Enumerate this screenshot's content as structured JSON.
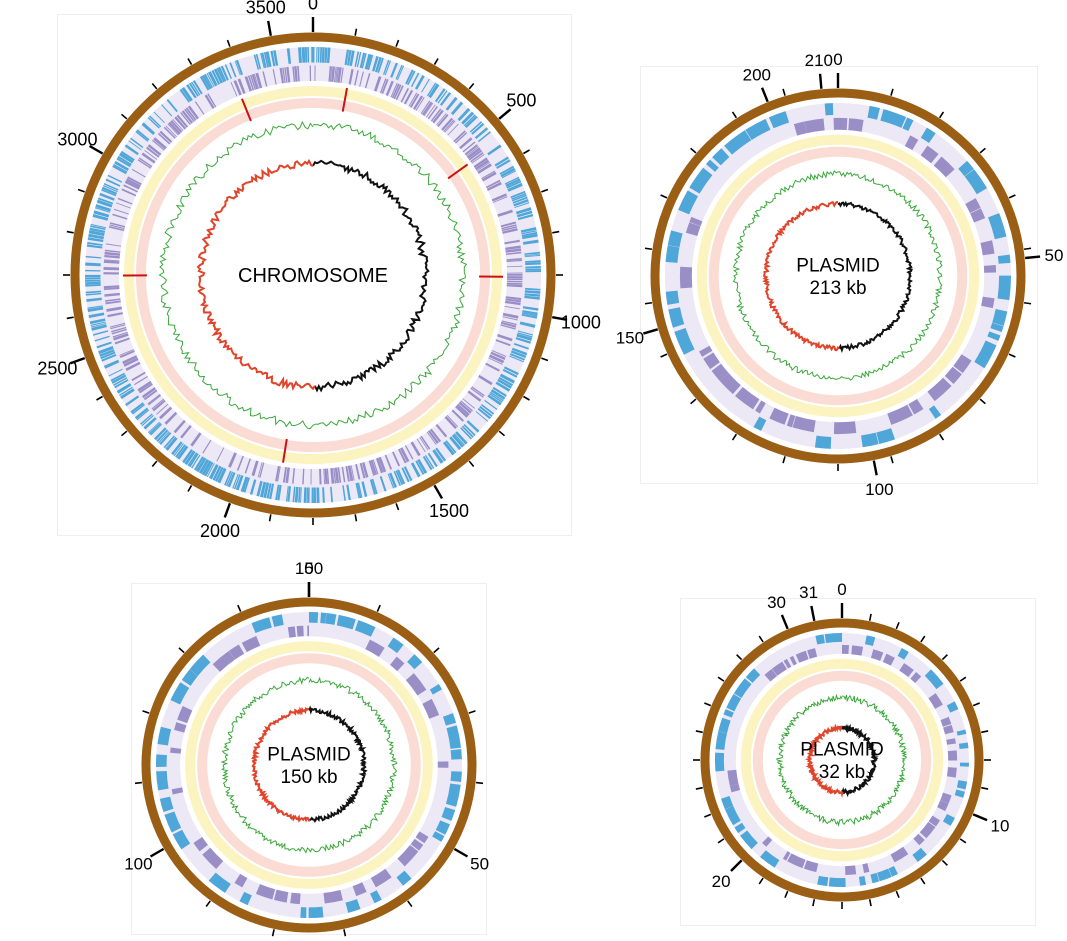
{
  "colors": {
    "backbone": "#9a5e14",
    "tick": "#000000",
    "gene_blue": "#4fa6d8",
    "gene_purple": "#9a8ec7",
    "gene_purple_bg": "#ece8f6",
    "yellow_ring": "#fbf4c0",
    "pink_ring": "#fbdcd4",
    "green_line": "#3aa83a",
    "skew_black": "#111111",
    "skew_red": "#e0442a",
    "red_mark": "#cc1111"
  },
  "maps": [
    {
      "id": "chromosome",
      "center_label": [
        "CHROMOSOME"
      ],
      "size_units": 3600,
      "tick_labels": [
        "0",
        "500",
        "1000",
        "1500",
        "2000",
        "2500",
        "3000",
        "3500"
      ],
      "label_positions": [
        0,
        500,
        1000,
        1500,
        2000,
        2500,
        3000,
        3500
      ],
      "minor_tick_count": 36
    },
    {
      "id": "plasmid-213",
      "center_label": [
        "PLASMID",
        "213 kb"
      ],
      "size_units": 213,
      "tick_labels": [
        "0",
        "50",
        "100",
        "150",
        "200",
        "210"
      ],
      "label_positions": [
        0,
        50,
        100,
        150,
        200,
        210
      ],
      "minor_tick_count": 22
    },
    {
      "id": "plasmid-150",
      "center_label": [
        "PLASMID",
        "150 kb"
      ],
      "size_units": 150,
      "tick_labels": [
        "0",
        "50",
        "100",
        "150"
      ],
      "label_positions": [
        0,
        50,
        100,
        150
      ],
      "minor_tick_count": 15
    },
    {
      "id": "plasmid-32",
      "center_label": [
        "PLASMID",
        "32 kb"
      ],
      "size_units": 32,
      "tick_labels": [
        "0",
        "10",
        "20",
        "30",
        "31"
      ],
      "label_positions": [
        0,
        10,
        20,
        30,
        31
      ],
      "minor_tick_count": 32
    }
  ]
}
